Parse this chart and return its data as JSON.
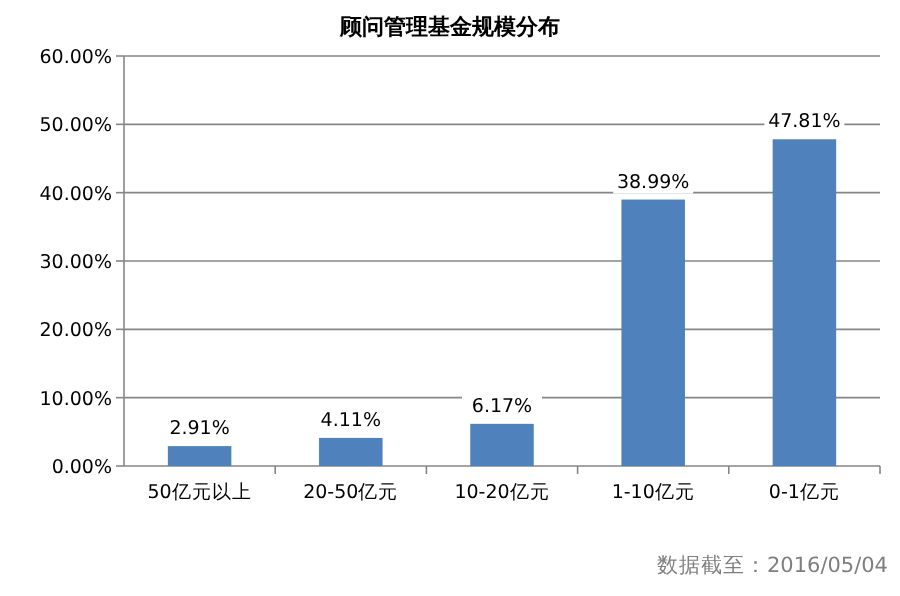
{
  "chart_data": {
    "type": "bar",
    "title": "顾问管理基金规模分布",
    "categories": [
      "50亿元以上",
      "20-50亿元",
      "10-20亿元",
      "1-10亿元",
      "0-1亿元"
    ],
    "values": [
      2.91,
      4.11,
      6.17,
      38.99,
      47.81
    ],
    "value_labels": [
      "2.91%",
      "4.11%",
      "6.17%",
      "38.99%",
      "47.81%"
    ],
    "color": "#4f81bd",
    "ylim": [
      0,
      60
    ],
    "yticks": [
      {
        "value": 0,
        "label": "0.00%"
      },
      {
        "value": 10,
        "label": "10.00%"
      },
      {
        "value": 20,
        "label": "20.00%"
      },
      {
        "value": 30,
        "label": "30.00%"
      },
      {
        "value": 40,
        "label": "40.00%"
      },
      {
        "value": 50,
        "label": "50.00%"
      },
      {
        "value": 60,
        "label": "60.00%"
      }
    ],
    "grid": "y",
    "annotations": [
      "数据截至：2016/05/04"
    ]
  }
}
